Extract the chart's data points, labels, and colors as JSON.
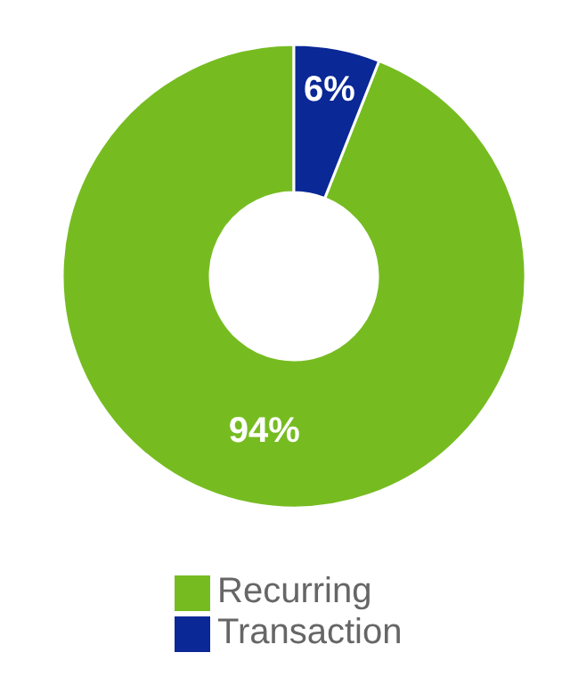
{
  "chart_data": {
    "type": "donut",
    "categories": [
      "Recurring",
      "Transaction"
    ],
    "values": [
      94,
      6
    ],
    "colors": [
      "#76bc21",
      "#0a2896"
    ],
    "value_labels": [
      "94%",
      "6%"
    ],
    "legend": "bottom"
  }
}
